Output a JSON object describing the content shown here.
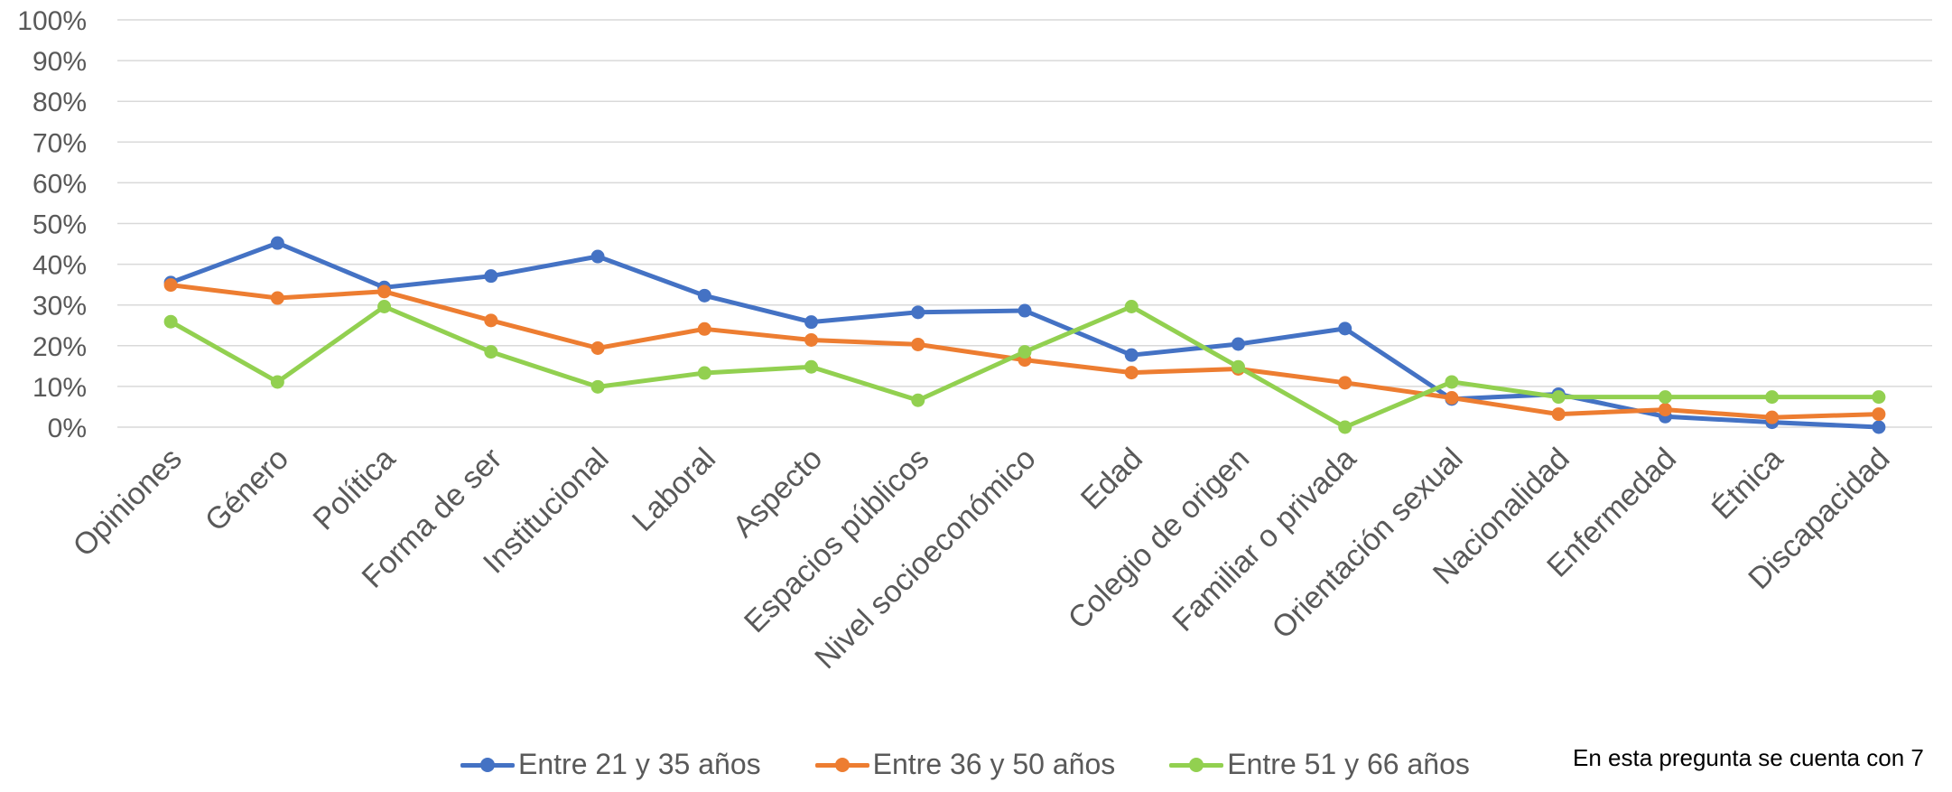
{
  "chart_data": {
    "type": "line",
    "categories": [
      "Opiniones",
      "Género",
      "Política",
      "Forma de ser",
      "Institucional",
      "Laboral",
      "Aspecto",
      "Espacios públicos",
      "Nivel socioeconómico",
      "Edad",
      "Colegio de origen",
      "Familiar o privada",
      "Orientación sexual",
      "Nacionalidad",
      "Enfermedad",
      "Étnica",
      "Discapacidad"
    ],
    "y_ticks": [
      "0%",
      "10%",
      "20%",
      "30%",
      "40%",
      "50%",
      "60%",
      "70%",
      "80%",
      "90%",
      "100%"
    ],
    "ylim": [
      0,
      100
    ],
    "grid": true,
    "legend_position": "bottom",
    "series": [
      {
        "name": "Entre 21 y 35 años",
        "color": "#4472C4",
        "values": [
          35.5,
          45.2,
          34.3,
          37.1,
          41.9,
          32.3,
          25.8,
          28.2,
          28.6,
          17.7,
          20.4,
          24.2,
          6.9,
          8.1,
          2.6,
          1.2,
          0.0
        ]
      },
      {
        "name": "Entre 36 y 50 años",
        "color": "#ED7D31",
        "values": [
          34.9,
          31.7,
          33.3,
          26.2,
          19.4,
          24.1,
          21.4,
          20.3,
          16.5,
          13.4,
          14.3,
          10.9,
          7.2,
          3.2,
          4.3,
          2.4,
          3.2
        ]
      },
      {
        "name": "Entre 51 y 66 años",
        "color": "#92D050",
        "values": [
          25.9,
          11.1,
          29.6,
          18.5,
          9.9,
          13.3,
          14.8,
          6.6,
          18.5,
          29.6,
          14.8,
          0.0,
          11.1,
          7.4,
          7.4,
          7.4,
          7.4
        ]
      }
    ]
  },
  "footnote": "En esta pregunta se cuenta con 7"
}
